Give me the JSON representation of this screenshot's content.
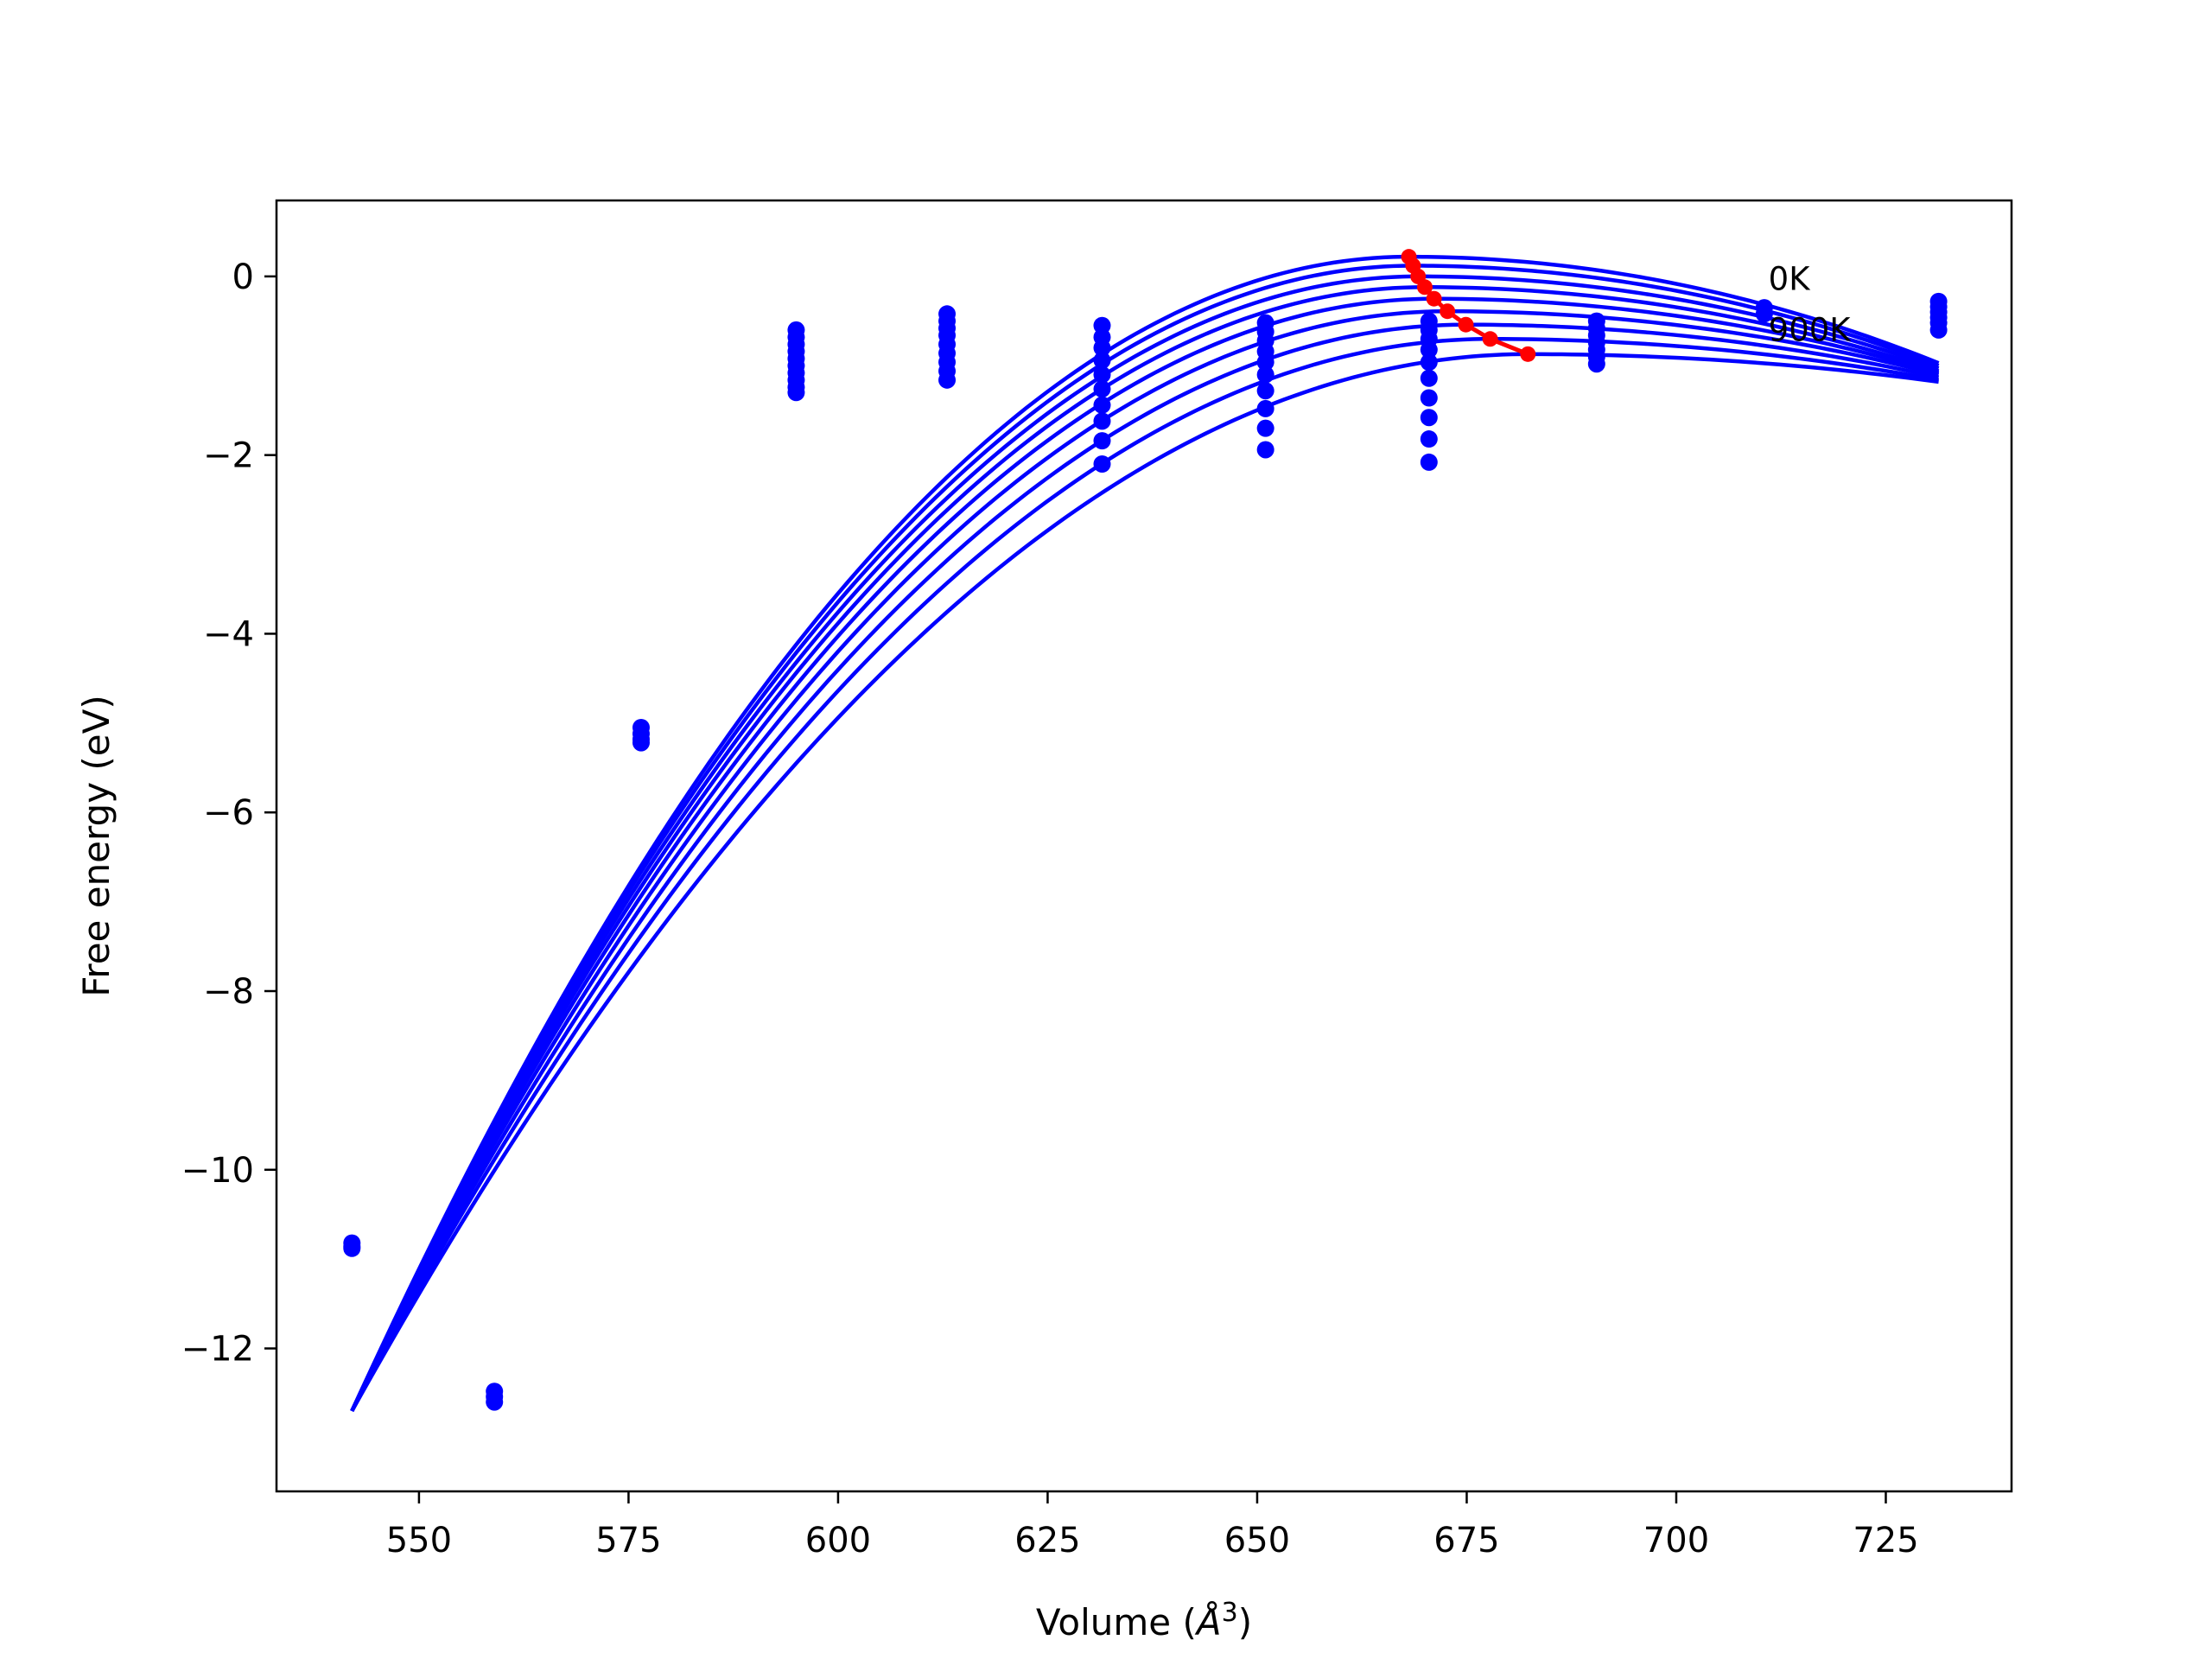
{
  "chart_data": {
    "type": "line",
    "xlabel": "Volume (Å³)",
    "xlabel_main": "Volume (",
    "xlabel_sym": "Å",
    "xlabel_sup": "3",
    "xlabel_close": ")",
    "ylabel": "Free energy (eV)",
    "xlim": [
      533,
      740
    ],
    "ylim": [
      -13.6,
      0.85
    ],
    "xticks": [
      550,
      575,
      600,
      625,
      650,
      675,
      700,
      725
    ],
    "xtick_labels": [
      "550",
      "575",
      "600",
      "625",
      "650",
      "675",
      "700",
      "725"
    ],
    "yticks": [
      -12,
      -10,
      -8,
      -6,
      -4,
      -2,
      0
    ],
    "ytick_labels": [
      "−12",
      "−10",
      "−8",
      "−6",
      "−4",
      "−2",
      "0"
    ],
    "grid": false,
    "curve_color": "#0000ff",
    "minima_color": "#ff0000",
    "data_color": "#0000ff",
    "annotations": [
      {
        "text": "0K",
        "x": 711,
        "y": -0.15
      },
      {
        "text": "900K",
        "x": 711,
        "y": -0.72
      }
    ],
    "fit_curves": {
      "x_range": [
        542,
        731.3
      ],
      "series": [
        {
          "minimum_volume": 668.1,
          "minimum_energy": 0.22,
          "energy_at_542": -12.7,
          "energy_at_731": -0.97
        },
        {
          "minimum_volume": 668.6,
          "minimum_energy": 0.12,
          "energy_at_542": -12.7,
          "energy_at_731": -1.0
        },
        {
          "minimum_volume": 669.2,
          "minimum_energy": 0.0,
          "energy_at_542": -12.7,
          "energy_at_731": -1.03
        },
        {
          "minimum_volume": 670.0,
          "minimum_energy": -0.12,
          "energy_at_542": -12.7,
          "energy_at_731": -1.06
        },
        {
          "minimum_volume": 671.1,
          "minimum_energy": -0.25,
          "energy_at_542": -12.7,
          "energy_at_731": -1.08
        },
        {
          "minimum_volume": 672.7,
          "minimum_energy": -0.39,
          "energy_at_542": -12.7,
          "energy_at_731": -1.1
        },
        {
          "minimum_volume": 674.9,
          "minimum_energy": -0.54,
          "energy_at_542": -12.7,
          "energy_at_731": -1.13
        },
        {
          "minimum_volume": 677.8,
          "minimum_energy": -0.7,
          "energy_at_542": -12.7,
          "energy_at_731": -1.16
        },
        {
          "minimum_volume": 682.3,
          "minimum_energy": -0.87,
          "energy_at_542": -12.7,
          "energy_at_731": -1.18
        }
      ]
    },
    "minima_line": {
      "x": [
        668.1,
        668.6,
        669.2,
        670.0,
        671.1,
        672.7,
        674.9,
        677.8,
        682.3
      ],
      "y": [
        0.22,
        0.12,
        0.0,
        -0.12,
        -0.25,
        -0.39,
        -0.54,
        -0.7,
        -0.87
      ]
    },
    "data_points": [
      {
        "x": 542.0,
        "y": [
          -10.82,
          -10.86,
          -10.88
        ]
      },
      {
        "x": 559.0,
        "y": [
          -12.48,
          -12.54,
          -12.6
        ]
      },
      {
        "x": 576.5,
        "y": [
          -5.05,
          -5.12,
          -5.18,
          -5.22
        ]
      },
      {
        "x": 595.0,
        "y": [
          -0.6,
          -0.68,
          -0.76,
          -0.84,
          -0.92,
          -1.0,
          -1.08,
          -1.16,
          -1.24,
          -1.3
        ]
      },
      {
        "x": 613.0,
        "y": [
          -0.42,
          -0.5,
          -0.58,
          -0.66,
          -0.76,
          -0.86,
          -0.96,
          -1.06,
          -1.16
        ]
      },
      {
        "x": 631.5,
        "y": [
          -0.55,
          -0.68,
          -0.8,
          -0.94,
          -1.1,
          -1.26,
          -1.44,
          -1.62,
          -1.84,
          -2.1
        ]
      },
      {
        "x": 651.0,
        "y": [
          -0.52,
          -0.62,
          -0.72,
          -0.84,
          -0.96,
          -1.1,
          -1.28,
          -1.48,
          -1.7,
          -1.94
        ]
      },
      {
        "x": 670.5,
        "y": [
          -0.5,
          -0.6,
          -0.7,
          -0.82,
          -0.96,
          -1.14,
          -1.36,
          -1.58,
          -1.82,
          -2.08
        ]
      },
      {
        "x": 690.5,
        "y": [
          -0.5,
          -0.58,
          -0.66,
          -0.74,
          -0.82,
          -0.9,
          -0.98
        ]
      },
      {
        "x": 710.5,
        "y": [
          -0.35,
          -0.42
        ]
      },
      {
        "x": 731.3,
        "y": [
          -0.28,
          -0.34,
          -0.4,
          -0.46,
          -0.52,
          -0.6
        ]
      }
    ]
  }
}
